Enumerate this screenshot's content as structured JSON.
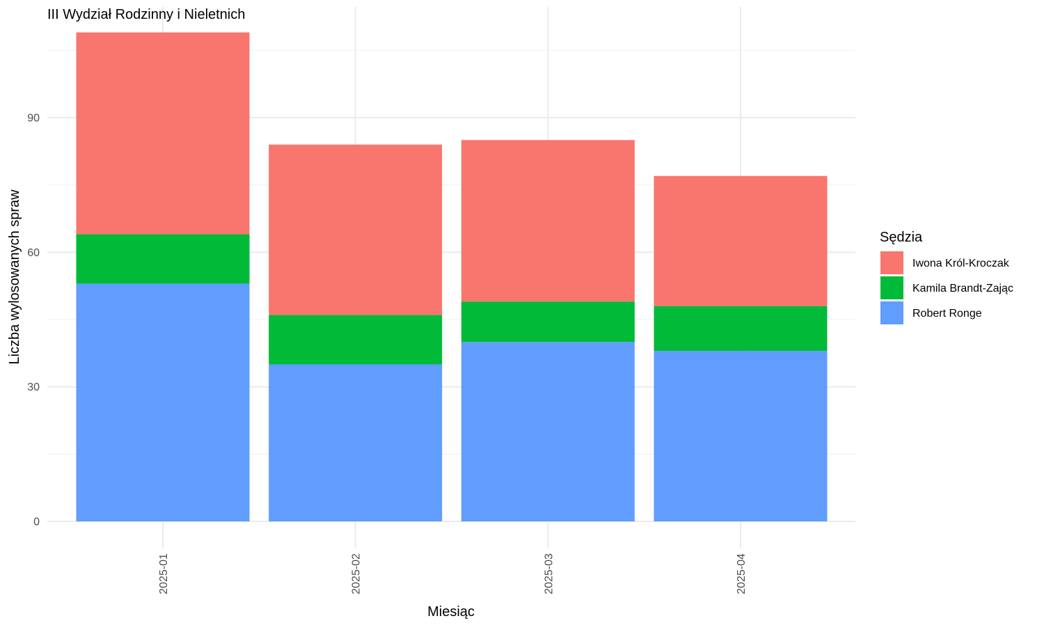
{
  "chart_data": {
    "type": "bar",
    "stacked": true,
    "title": "III Wydział Rodzinny i Nieletnich",
    "xlabel": "Miesiąc",
    "ylabel": "Liczba wylosowanych spraw",
    "categories": [
      "2025-01",
      "2025-02",
      "2025-03",
      "2025-04"
    ],
    "series": [
      {
        "name": "Robert Ronge",
        "color": "#619CFF",
        "values": [
          53,
          35,
          40,
          38
        ]
      },
      {
        "name": "Kamila Brandt-Zając",
        "color": "#00BA38",
        "values": [
          11,
          11,
          9,
          10
        ]
      },
      {
        "name": "Iwona Król-Kroczak",
        "color": "#F8766D",
        "values": [
          45,
          38,
          36,
          29
        ]
      }
    ],
    "ylim": [
      0,
      110
    ],
    "yticks": [
      0,
      30,
      60,
      90
    ],
    "y_minor_ticks": [
      15,
      45,
      75,
      105
    ],
    "grid": true,
    "legend": {
      "title": "Sędzia",
      "placement": "right",
      "order": [
        "Iwona Król-Kroczak",
        "Kamila Brandt-Zając",
        "Robert Ronge"
      ]
    }
  }
}
